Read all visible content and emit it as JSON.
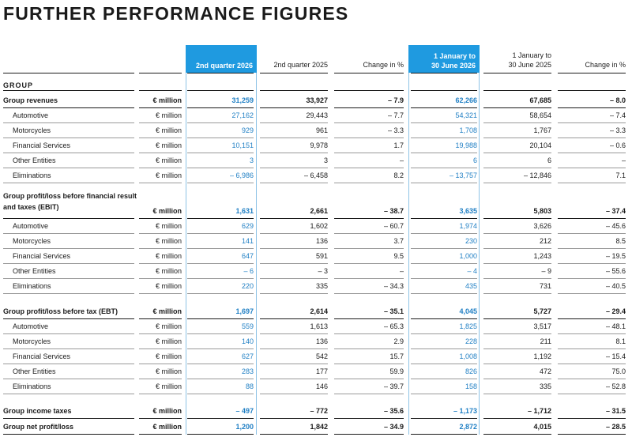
{
  "title": "FURTHER PERFORMANCE FIGURES",
  "section_label": "GROUP",
  "headers": {
    "col1": "2nd quarter 2026",
    "col2": "2nd quarter 2025",
    "col3": "Change in %",
    "col4_line1": "1 January to",
    "col4_line2": "30 June 2026",
    "col5_line1": "1 January to",
    "col5_line2": "30 June 2025",
    "col6": "Change in %"
  },
  "colors": {
    "accent": "#1f9ae0",
    "highlight_text": "#1f7fc4"
  },
  "blocks": [
    {
      "title_lines": [
        "Group revenues"
      ],
      "unit": "€ million",
      "values": [
        "31,259",
        "33,927",
        "– 7.9",
        "62,266",
        "67,685",
        "– 8.0"
      ],
      "rows": [
        {
          "label": "Automotive",
          "unit": "€ million",
          "values": [
            "27,162",
            "29,443",
            "– 7.7",
            "54,321",
            "58,654",
            "– 7.4"
          ]
        },
        {
          "label": "Motorcycles",
          "unit": "€ million",
          "values": [
            "929",
            "961",
            "– 3.3",
            "1,708",
            "1,767",
            "– 3.3"
          ]
        },
        {
          "label": "Financial Services",
          "unit": "€ million",
          "values": [
            "10,151",
            "9,978",
            "1.7",
            "19,988",
            "20,104",
            "– 0.6"
          ]
        },
        {
          "label": "Other Entities",
          "unit": "€ million",
          "values": [
            "3",
            "3",
            "–",
            "6",
            "6",
            "–"
          ]
        },
        {
          "label": "Eliminations",
          "unit": "€ million",
          "values": [
            "– 6,986",
            "– 6,458",
            "8.2",
            "– 13,757",
            "– 12,846",
            "7.1"
          ]
        }
      ]
    },
    {
      "title_lines": [
        "Group profit/loss before financial result",
        "and taxes (EBIT)"
      ],
      "unit": "€ million",
      "values": [
        "1,631",
        "2,661",
        "– 38.7",
        "3,635",
        "5,803",
        "– 37.4"
      ],
      "rows": [
        {
          "label": "Automotive",
          "unit": "€ million",
          "values": [
            "629",
            "1,602",
            "– 60.7",
            "1,974",
            "3,626",
            "– 45.6"
          ]
        },
        {
          "label": "Motorcycles",
          "unit": "€ million",
          "values": [
            "141",
            "136",
            "3.7",
            "230",
            "212",
            "8.5"
          ]
        },
        {
          "label": "Financial Services",
          "unit": "€ million",
          "values": [
            "647",
            "591",
            "9.5",
            "1,000",
            "1,243",
            "– 19.5"
          ]
        },
        {
          "label": "Other Entities",
          "unit": "€ million",
          "values": [
            "– 6",
            "– 3",
            "–",
            "– 4",
            "– 9",
            "– 55.6"
          ]
        },
        {
          "label": "Eliminations",
          "unit": "€ million",
          "values": [
            "220",
            "335",
            "– 34.3",
            "435",
            "731",
            "– 40.5"
          ]
        }
      ]
    },
    {
      "title_lines": [
        "Group profit/loss before tax (EBT)"
      ],
      "unit": "€ million",
      "values": [
        "1,697",
        "2,614",
        "– 35.1",
        "4,045",
        "5,727",
        "– 29.4"
      ],
      "rows": [
        {
          "label": "Automotive",
          "unit": "€ million",
          "values": [
            "559",
            "1,613",
            "– 65.3",
            "1,825",
            "3,517",
            "– 48.1"
          ]
        },
        {
          "label": "Motorcycles",
          "unit": "€ million",
          "values": [
            "140",
            "136",
            "2.9",
            "228",
            "211",
            "8.1"
          ]
        },
        {
          "label": "Financial Services",
          "unit": "€ million",
          "values": [
            "627",
            "542",
            "15.7",
            "1,008",
            "1,192",
            "– 15.4"
          ]
        },
        {
          "label": "Other Entities",
          "unit": "€ million",
          "values": [
            "283",
            "177",
            "59.9",
            "826",
            "472",
            "75.0"
          ]
        },
        {
          "label": "Eliminations",
          "unit": "€ million",
          "values": [
            "88",
            "146",
            "– 39.7",
            "158",
            "335",
            "– 52.8"
          ]
        }
      ]
    }
  ],
  "totals": [
    {
      "label": "Group income taxes",
      "unit": "€ million",
      "values": [
        "– 497",
        "– 772",
        "– 35.6",
        "– 1,173",
        "– 1,712",
        "– 31.5"
      ]
    },
    {
      "label": "Group net profit/loss",
      "unit": "€ million",
      "values": [
        "1,200",
        "1,842",
        "– 34.9",
        "2,872",
        "4,015",
        "– 28.5"
      ]
    }
  ]
}
